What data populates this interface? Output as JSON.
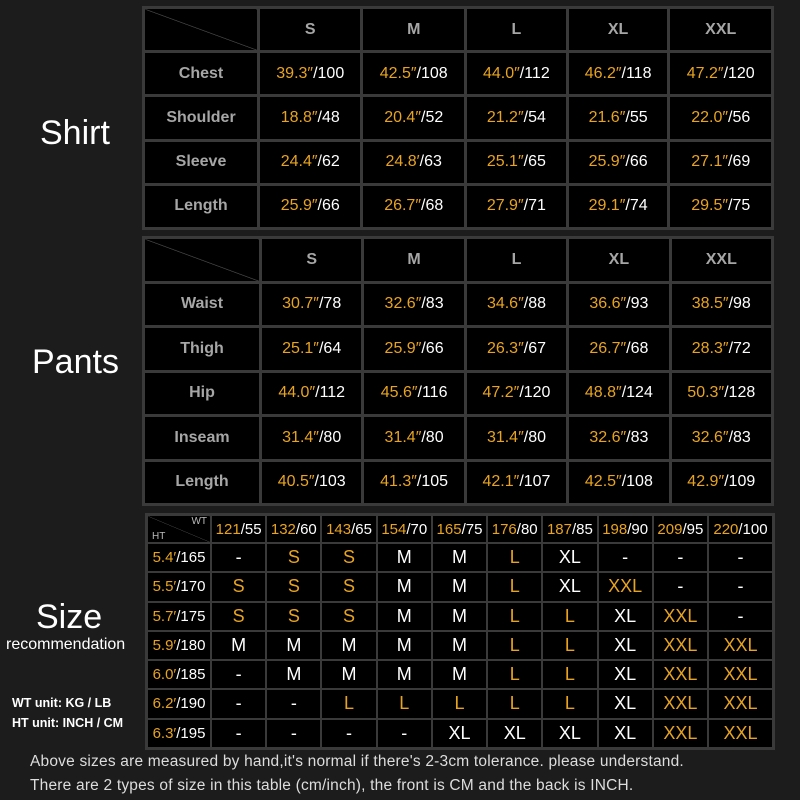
{
  "colors": {
    "accent": "#e8a420",
    "text": "#ffffff",
    "header": "#a6a6a6",
    "background": "#1c1c1c"
  },
  "labels": {
    "shirt": "Shirt",
    "pants": "Pants",
    "size": "Size",
    "recommendation": "recommendation",
    "wt_unit": "WT unit: KG / LB",
    "ht_unit": "HT unit: INCH / CM"
  },
  "sizes": [
    "S",
    "M",
    "L",
    "XL",
    "XXL"
  ],
  "shirt": {
    "rows": [
      {
        "label": "Chest",
        "values": [
          [
            "39.3″",
            "/100"
          ],
          [
            "42.5″",
            "/108"
          ],
          [
            "44.0″",
            "/112"
          ],
          [
            "46.2″",
            "/118"
          ],
          [
            "47.2″",
            "/120"
          ]
        ]
      },
      {
        "label": "Shoulder",
        "values": [
          [
            "18.8″",
            "/48"
          ],
          [
            "20.4″",
            "/52"
          ],
          [
            "21.2″",
            "/54"
          ],
          [
            "21.6″",
            "/55"
          ],
          [
            "22.0″",
            "/56"
          ]
        ]
      },
      {
        "label": "Sleeve",
        "values": [
          [
            "24.4″",
            "/62"
          ],
          [
            "24.8′",
            "/63"
          ],
          [
            "25.1″",
            "/65"
          ],
          [
            "25.9″",
            "/66"
          ],
          [
            "27.1″",
            "/69"
          ]
        ]
      },
      {
        "label": "Length",
        "values": [
          [
            "25.9″",
            "/66"
          ],
          [
            "26.7″",
            "/68"
          ],
          [
            "27.9″",
            "/71"
          ],
          [
            "29.1″",
            "/74"
          ],
          [
            "29.5″",
            "/75"
          ]
        ]
      }
    ]
  },
  "pants": {
    "rows": [
      {
        "label": "Waist",
        "values": [
          [
            "30.7″",
            "/78"
          ],
          [
            "32.6″",
            "/83"
          ],
          [
            "34.6″",
            "/88"
          ],
          [
            "36.6″",
            "/93"
          ],
          [
            "38.5″",
            "/98"
          ]
        ]
      },
      {
        "label": "Thigh",
        "values": [
          [
            "25.1″",
            "/64"
          ],
          [
            "25.9″",
            "/66"
          ],
          [
            "26.3″",
            "/67"
          ],
          [
            "26.7″",
            "/68"
          ],
          [
            "28.3″",
            "/72"
          ]
        ]
      },
      {
        "label": "Hip",
        "values": [
          [
            "44.0″",
            "/112"
          ],
          [
            "45.6″",
            "/116"
          ],
          [
            "47.2″",
            "/120"
          ],
          [
            "48.8″",
            "/124"
          ],
          [
            "50.3″",
            "/128"
          ]
        ]
      },
      {
        "label": "Inseam",
        "values": [
          [
            "31.4″",
            "/80"
          ],
          [
            "31.4″",
            "/80"
          ],
          [
            "31.4″",
            "/80"
          ],
          [
            "32.6″",
            "/83"
          ],
          [
            "32.6″",
            "/83"
          ]
        ]
      },
      {
        "label": "Length",
        "values": [
          [
            "40.5″",
            "/103"
          ],
          [
            "41.3″",
            "/105"
          ],
          [
            "42.1″",
            "/107"
          ],
          [
            "42.5″",
            "/108"
          ],
          [
            "42.9″",
            "/109"
          ]
        ]
      }
    ]
  },
  "recommendation": {
    "wt_label": "WT",
    "ht_label": "HT",
    "weights": [
      [
        "121",
        "/55"
      ],
      [
        "132",
        "/60"
      ],
      [
        "143",
        "/65"
      ],
      [
        "154",
        "/70"
      ],
      [
        "165",
        "/75"
      ],
      [
        "176",
        "/80"
      ],
      [
        "187",
        "/85"
      ],
      [
        "198",
        "/90"
      ],
      [
        "209",
        "/95"
      ],
      [
        "220",
        "/100"
      ]
    ],
    "orange_sizes": [
      "S",
      "L",
      "XXL"
    ],
    "rows": [
      {
        "height": [
          "5.4′",
          "/165"
        ],
        "sizes": [
          "-",
          "S",
          "S",
          "M",
          "M",
          "L",
          "XL",
          "-",
          "-",
          "-"
        ]
      },
      {
        "height": [
          "5.5′",
          "/170"
        ],
        "sizes": [
          "S",
          "S",
          "S",
          "M",
          "M",
          "L",
          "XL",
          "XXL",
          "-",
          "-"
        ]
      },
      {
        "height": [
          "5.7′",
          "/175"
        ],
        "sizes": [
          "S",
          "S",
          "S",
          "M",
          "M",
          "L",
          "L",
          "XL",
          "XXL",
          "-"
        ]
      },
      {
        "height": [
          "5.9′",
          "/180"
        ],
        "sizes": [
          "M",
          "M",
          "M",
          "M",
          "M",
          "L",
          "L",
          "XL",
          "XXL",
          "XXL"
        ]
      },
      {
        "height": [
          "6.0′",
          "/185"
        ],
        "sizes": [
          "-",
          "M",
          "M",
          "M",
          "M",
          "L",
          "L",
          "XL",
          "XXL",
          "XXL"
        ]
      },
      {
        "height": [
          "6.2′",
          "/190"
        ],
        "sizes": [
          "-",
          "-",
          "L",
          "L",
          "L",
          "L",
          "L",
          "XL",
          "XXL",
          "XXL"
        ]
      },
      {
        "height": [
          "6.3′",
          "/195"
        ],
        "sizes": [
          "-",
          "-",
          "-",
          "-",
          "XL",
          "XL",
          "XL",
          "XL",
          "XXL",
          "XXL"
        ]
      }
    ]
  },
  "footer": {
    "line1": "Above sizes are measured by hand,it's normal if there's 2-3cm tolerance. please understand.",
    "line2": "There are 2 types of size in this table (cm/inch), the front is CM and the back is INCH."
  }
}
